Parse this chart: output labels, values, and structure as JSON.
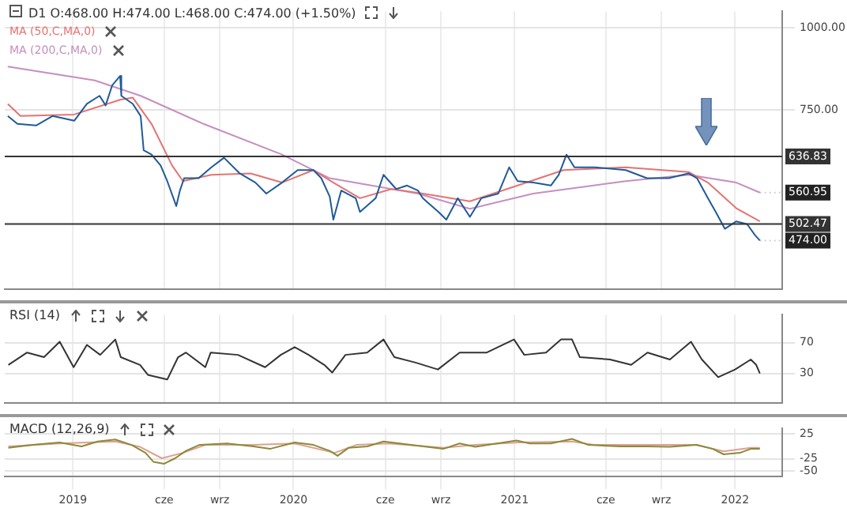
{
  "chart_data": [
    {
      "type": "line",
      "title": "D1 O:468.00 H:474.00 L:468.00 C:474.00 (+1.50%)",
      "log": "y",
      "grid": true,
      "legend": "top left",
      "tick_labels": "y",
      "xlim": [
        "2018-09-10",
        "2022-03-20"
      ],
      "xticks": [
        {
          "value": "2019-01-01",
          "label": null
        },
        {
          "value": "2019-06-01",
          "label": null
        },
        {
          "value": "2019-09-01",
          "label": null
        },
        {
          "value": "2020-01-01",
          "label": null
        },
        {
          "value": "2020-06-01",
          "label": null
        },
        {
          "value": "2020-09-01",
          "label": null
        },
        {
          "value": "2021-01-01",
          "label": null
        },
        {
          "value": "2021-06-01",
          "label": null
        },
        {
          "value": "2021-09-01",
          "label": null
        },
        {
          "value": "2022-01-01",
          "label": null
        }
      ],
      "ylim": [
        400,
        1060
      ],
      "yticks": [
        {
          "value": 1000,
          "label": "1000.00"
        },
        {
          "value": 750,
          "label": "750.00"
        }
      ],
      "ref_lines": [
        {
          "axis": "y",
          "value": 636.83,
          "label": "636.83",
          "color": "#333333"
        },
        {
          "axis": "y",
          "value": 502.47,
          "label": "502.47",
          "color": "#333333"
        }
      ],
      "annotations": [
        {
          "text": "560.95",
          "x": "2022-02-11",
          "y": 560.95
        },
        {
          "text": "474.00",
          "x": "2022-02-11",
          "y": 474
        }
      ],
      "series": [
        {
          "color": "#1f5a9a",
          "x": [
            "2018-09-15",
            "2018-10-01",
            "2018-11-01",
            "2018-11-28",
            "2019-01-03",
            "2019-01-24",
            "2019-02-14",
            "2019-02-24",
            "2019-03-07",
            "2019-03-20",
            "2019-03-22",
            "2019-04-10",
            "2019-04-23",
            "2019-04-28",
            "2019-05-11",
            "2019-05-26",
            "2019-06-06",
            "2019-06-21",
            "2019-06-27",
            "2019-07-04",
            "2019-07-28",
            "2019-08-18",
            "2019-09-08",
            "2019-10-04",
            "2019-10-30",
            "2019-11-17",
            "2019-12-13",
            "2020-01-08",
            "2020-02-03",
            "2020-02-16",
            "2020-03-01",
            "2020-03-07",
            "2020-03-20",
            "2020-04-13",
            "2020-04-20",
            "2020-05-16",
            "2020-05-29",
            "2020-06-19",
            "2020-07-07",
            "2020-07-25",
            "2020-08-02",
            "2020-08-28",
            "2020-09-10",
            "2020-09-29",
            "2020-10-19",
            "2020-11-07",
            "2020-12-05",
            "2020-12-23",
            "2021-01-06",
            "2021-02-01",
            "2021-03-02",
            "2021-03-15",
            "2021-03-28",
            "2021-04-10",
            "2021-05-14",
            "2021-07-04",
            "2021-08-08",
            "2021-09-13",
            "2021-10-16",
            "2021-10-30",
            "2021-11-17",
            "2021-11-30",
            "2021-12-15",
            "2022-01-03",
            "2022-01-21",
            "2022-02-03",
            "2022-02-11"
          ],
          "values": [
            734,
            714,
            710,
            734,
            722,
            766,
            788,
            762,
            818,
            845,
            788,
            766,
            734,
            651,
            641,
            617,
            584,
            535,
            565,
            590,
            590,
            613,
            634,
            600,
            581,
            559,
            581,
            607,
            607,
            590,
            553,
            510,
            565,
            550,
            524,
            550,
            597,
            568,
            575,
            565,
            550,
            524,
            510,
            550,
            515,
            550,
            559,
            613,
            584,
            581,
            575,
            597,
            641,
            613,
            613,
            607,
            590,
            590,
            600,
            590,
            550,
            524,
            494,
            507,
            502,
            483,
            474
          ]
        },
        {
          "name": "MA (50,C,MA,0)",
          "color": "#e57373",
          "x": [
            "2018-09-15",
            "2018-10-06",
            "2019-01-03",
            "2019-03-20",
            "2019-04-10",
            "2019-05-11",
            "2019-06-14",
            "2019-07-02",
            "2019-08-18",
            "2019-10-22",
            "2019-12-13",
            "2020-02-03",
            "2020-03-07",
            "2020-04-20",
            "2020-06-11",
            "2020-08-02",
            "2020-10-19",
            "2021-01-06",
            "2021-03-23",
            "2021-07-04",
            "2021-10-16",
            "2021-11-17",
            "2022-01-03",
            "2022-02-11"
          ],
          "values": [
            766,
            734,
            738,
            777,
            783,
            714,
            617,
            584,
            597,
            600,
            581,
            607,
            581,
            550,
            568,
            559,
            544,
            575,
            607,
            613,
            603,
            581,
            531,
            507
          ]
        },
        {
          "name": "MA (200,C,MA,0)",
          "color": "#c58fbf",
          "x": [
            "2018-09-15",
            "2019-02-06",
            "2019-04-23",
            "2019-08-05",
            "2019-12-13",
            "2020-03-01",
            "2020-07-25",
            "2020-10-19",
            "2021-02-01",
            "2021-07-04",
            "2021-10-16",
            "2022-01-03",
            "2022-02-11"
          ],
          "values": [
            873,
            832,
            788,
            714,
            641,
            590,
            559,
            530,
            559,
            584,
            597,
            581,
            560.95
          ]
        }
      ]
    },
    {
      "type": "line",
      "title": "RSI (14)",
      "grid": true,
      "tick_labels": "y",
      "xlim": [
        "2018-09-10",
        "2022-03-20"
      ],
      "xticks": [
        {
          "value": "2019-01-01",
          "label": null
        },
        {
          "value": "2019-06-01",
          "label": null
        },
        {
          "value": "2019-09-01",
          "label": null
        },
        {
          "value": "2020-01-01",
          "label": null
        },
        {
          "value": "2020-06-01",
          "label": null
        },
        {
          "value": "2020-09-01",
          "label": null
        },
        {
          "value": "2021-01-01",
          "label": null
        },
        {
          "value": "2021-06-01",
          "label": null
        },
        {
          "value": "2021-09-01",
          "label": null
        },
        {
          "value": "2022-01-01",
          "label": null
        }
      ],
      "ylim": [
        -8,
        106
      ],
      "yticks": [
        70,
        30
      ],
      "series": [
        {
          "color": "#333333",
          "x": [
            "2018-09-16",
            "2018-10-17",
            "2018-11-14",
            "2018-12-10",
            "2019-01-02",
            "2019-01-24",
            "2019-02-15",
            "2019-03-12",
            "2019-03-21",
            "2019-04-22",
            "2019-05-05",
            "2019-06-06",
            "2019-06-24",
            "2019-07-07",
            "2019-08-08",
            "2019-08-17",
            "2019-10-01",
            "2019-11-15",
            "2019-12-11",
            "2020-01-03",
            "2020-01-26",
            "2020-02-21",
            "2020-03-05",
            "2020-03-27",
            "2020-05-02",
            "2020-05-29",
            "2020-06-16",
            "2020-07-21",
            "2020-08-27",
            "2020-10-02",
            "2020-11-16",
            "2020-12-31",
            "2021-01-17",
            "2021-02-22",
            "2021-03-19",
            "2021-04-06",
            "2021-04-19",
            "2021-06-08",
            "2021-07-13",
            "2021-08-09",
            "2021-09-15",
            "2021-10-20",
            "2021-11-07",
            "2021-12-04",
            "2022-01-01",
            "2022-01-27",
            "2022-02-05",
            "2022-02-11"
          ],
          "values": [
            41,
            57,
            51,
            71,
            38,
            67,
            54,
            74,
            51,
            41,
            28,
            22,
            51,
            57,
            38,
            57,
            54,
            38,
            54,
            64,
            54,
            41,
            31,
            54,
            57,
            74,
            51,
            44,
            35,
            57,
            57,
            74,
            54,
            57,
            74,
            74,
            51,
            48,
            41,
            57,
            48,
            71,
            48,
            25,
            35,
            48,
            41,
            30
          ]
        }
      ]
    },
    {
      "type": "line",
      "title": "MACD (12,26,9)",
      "grid": true,
      "xlim": [
        "2018-09-10",
        "2022-03-20"
      ],
      "xticks": [
        {
          "value": "2019-01-01",
          "label": "2019"
        },
        {
          "value": "2019-06-01",
          "label": "cze"
        },
        {
          "value": "2019-09-01",
          "label": "wrz"
        },
        {
          "value": "2020-01-01",
          "label": "2020"
        },
        {
          "value": "2020-06-01",
          "label": "cze"
        },
        {
          "value": "2020-09-01",
          "label": "wrz"
        },
        {
          "value": "2021-01-01",
          "label": "2021"
        },
        {
          "value": "2021-06-01",
          "label": "cze"
        },
        {
          "value": "2021-09-01",
          "label": "wrz"
        },
        {
          "value": "2022-01-01",
          "label": "2022"
        }
      ],
      "ylim": [
        -61,
        36
      ],
      "yticks": [
        25,
        -25,
        -50
      ],
      "series": [
        {
          "color": "#8a8a3a",
          "x": [
            "2018-09-16",
            "2018-10-26",
            "2018-12-10",
            "2019-01-15",
            "2019-02-11",
            "2019-03-12",
            "2019-04-08",
            "2019-05-01",
            "2019-05-14",
            "2019-06-01",
            "2019-06-19",
            "2019-07-07",
            "2019-07-29",
            "2019-09-13",
            "2019-10-27",
            "2019-11-23",
            "2020-01-03",
            "2020-02-03",
            "2020-03-01",
            "2020-03-14",
            "2020-04-01",
            "2020-05-02",
            "2020-05-29",
            "2020-06-25",
            "2020-08-09",
            "2020-09-05",
            "2020-10-02",
            "2020-10-28",
            "2020-12-03",
            "2021-01-04",
            "2021-01-26",
            "2021-03-02",
            "2021-04-06",
            "2021-05-03",
            "2021-06-26",
            "2021-08-09",
            "2021-09-15",
            "2021-10-29",
            "2021-11-25",
            "2021-12-13",
            "2022-01-09",
            "2022-01-27",
            "2022-02-11"
          ],
          "values": [
            -3,
            3,
            8,
            0,
            10,
            14,
            3,
            -13,
            -31,
            -35,
            -24,
            -9,
            3,
            6,
            0,
            -5,
            8,
            3,
            -9,
            -19,
            -3,
            0,
            10,
            6,
            -1,
            -5,
            6,
            -1,
            6,
            12,
            6,
            6,
            15,
            3,
            0,
            0,
            -1,
            3,
            -5,
            -16,
            -13,
            -5,
            -5
          ]
        },
        {
          "color": "#e0a090",
          "x": [
            "2018-09-16",
            "2018-12-10",
            "2019-03-12",
            "2019-04-22",
            "2019-05-28",
            "2019-07-02",
            "2019-08-08",
            "2019-10-27",
            "2020-01-03",
            "2020-03-09",
            "2020-04-14",
            "2020-06-07",
            "2020-09-05",
            "2020-10-28",
            "2021-01-08",
            "2021-04-06",
            "2021-05-12",
            "2021-10-29",
            "2021-12-13",
            "2022-01-27",
            "2022-02-11"
          ],
          "values": [
            0,
            6,
            10,
            -1,
            -24,
            -13,
            3,
            3,
            6,
            -13,
            3,
            6,
            -3,
            3,
            8,
            10,
            3,
            3,
            -10,
            -3,
            -3
          ]
        }
      ]
    }
  ]
}
